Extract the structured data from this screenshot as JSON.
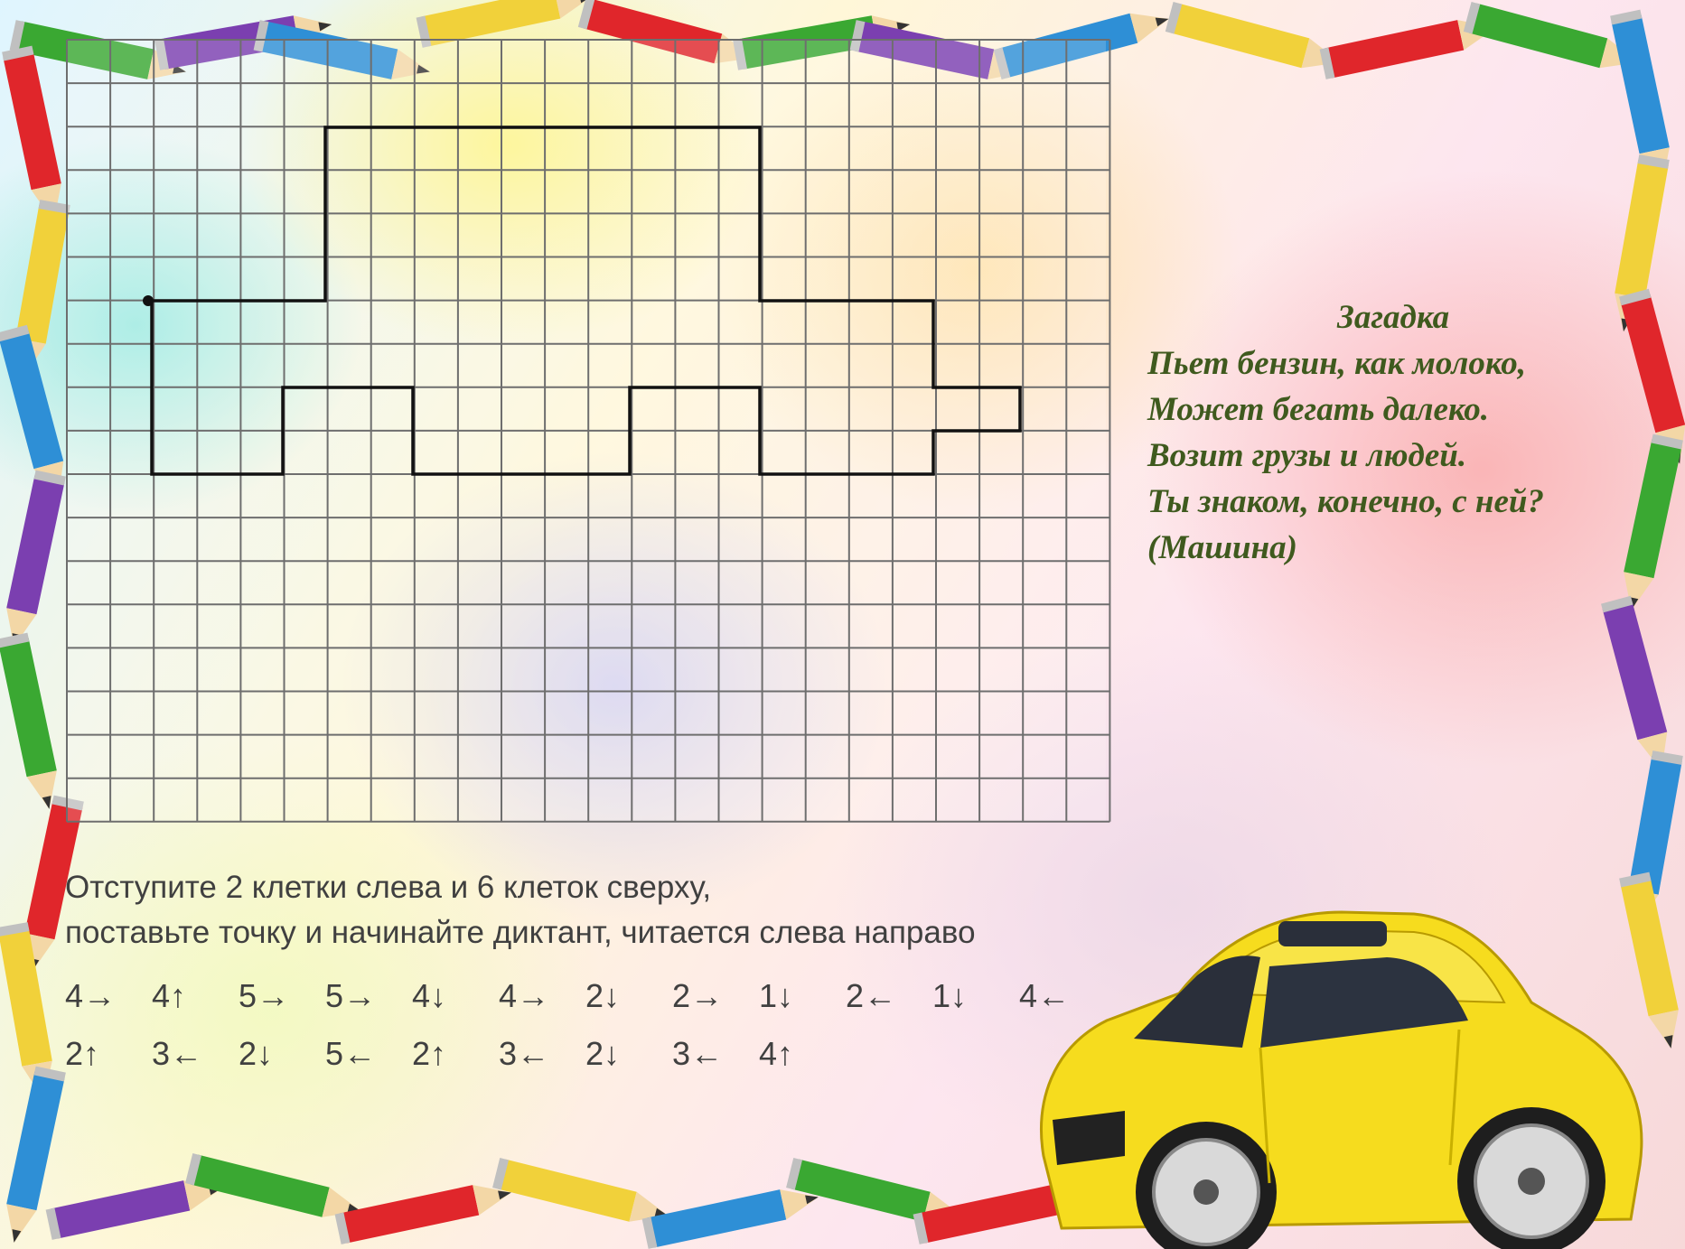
{
  "riddle": {
    "title": "Загадка",
    "lines": [
      "Пьет бензин, как молоко,",
      "Может бегать далеко.",
      "Возит грузы и людей.",
      "Ты знаком, конечно, с ней?",
      "(Машина)"
    ]
  },
  "instructions": {
    "line1": "Отступите  2 клетки слева и 6 клеток сверху,",
    "line2": "поставьте точку и начинайте диктант, читается слева направо"
  },
  "dictation": {
    "row1": [
      "4→",
      "4↑",
      "5→",
      "5→",
      "4↓",
      "4→",
      "2↓",
      "2→",
      "1↓",
      "2←",
      "1↓",
      "4←"
    ],
    "row2": [
      "2↑",
      "3←",
      "2↓",
      "5←",
      "2↑",
      "3←",
      "2↓",
      "3←",
      "4↑"
    ]
  },
  "colors": {
    "text": "#404040",
    "riddle_text": "#3f5a1e",
    "grid_line": "#6e6e6e",
    "figure_line": "#111111",
    "car_body": "#f6dc1e"
  },
  "icons": [
    "pencil-icon",
    "car-illustration",
    "start-dot"
  ]
}
